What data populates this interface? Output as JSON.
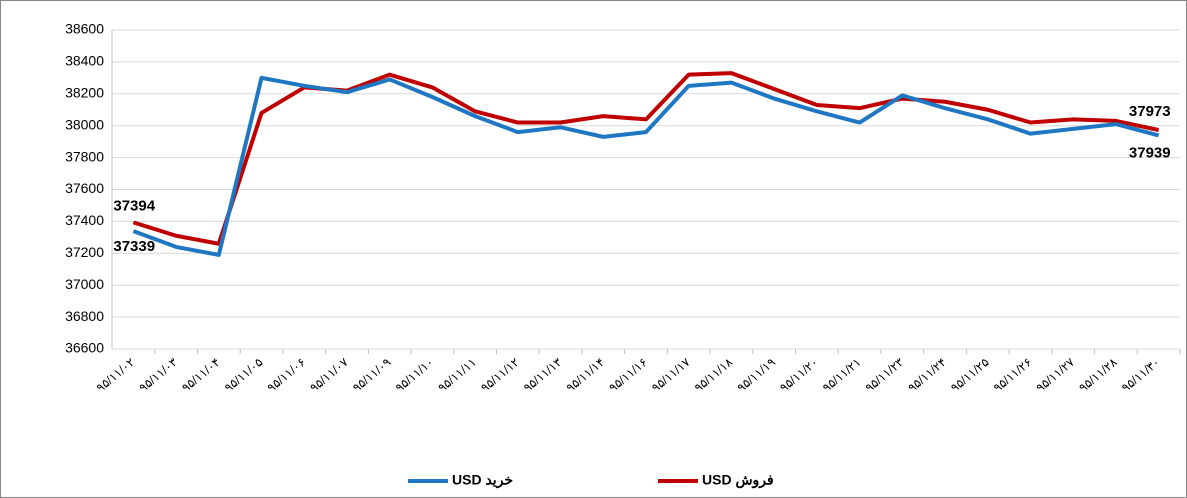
{
  "chart_data": {
    "type": "line",
    "categories": [
      "۹۵/۱۱/۰۲",
      "۹۵/۱۱/۰۳",
      "۹۵/۱۱/۰۴",
      "۹۵/۱۱/۰۵",
      "۹۵/۱۱/۰۶",
      "۹۵/۱۱/۰۷",
      "۹۵/۱۱/۰۹",
      "۹۵/۱۱/۱۰",
      "۹۵/۱۱/۱۱",
      "۹۵/۱۱/۱۲",
      "۹۵/۱۱/۱۳",
      "۹۵/۱۱/۱۴",
      "۹۵/۱۱/۱۶",
      "۹۵/۱۱/۱۷",
      "۹۵/۱۱/۱۸",
      "۹۵/۱۱/۱۹",
      "۹۵/۱۱/۲۰",
      "۹۵/۱۱/۲۱",
      "۹۵/۱۱/۲۳",
      "۹۵/۱۱/۲۴",
      "۹۵/۱۱/۲۵",
      "۹۵/۱۱/۲۶",
      "۹۵/۱۱/۲۷",
      "۹۵/۱۱/۲۸",
      "۹۵/۱۱/۳۰"
    ],
    "series": [
      {
        "name": "خرید USD",
        "color": "#1f77c4",
        "values": [
          37339,
          37240,
          37190,
          38300,
          38250,
          38210,
          38290,
          38180,
          38060,
          37960,
          37990,
          37930,
          37960,
          38250,
          38270,
          38170,
          38090,
          38020,
          38190,
          38110,
          38040,
          37950,
          37980,
          38010,
          37939
        ]
      },
      {
        "name": "فروش USD",
        "color": "#c00000",
        "values": [
          37394,
          37310,
          37260,
          38080,
          38240,
          38220,
          38320,
          38240,
          38090,
          38020,
          38020,
          38060,
          38040,
          38320,
          38330,
          38230,
          38130,
          38110,
          38170,
          38150,
          38100,
          38020,
          38040,
          38030,
          37973
        ]
      }
    ],
    "ylim": [
      36600,
      38600
    ],
    "yticks": [
      36600,
      36800,
      37000,
      37200,
      37400,
      37600,
      37800,
      38000,
      38200,
      38400,
      38600
    ],
    "grid": true
  }
}
